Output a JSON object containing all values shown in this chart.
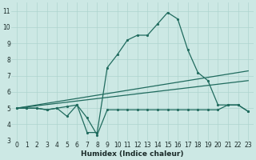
{
  "xlabel": "Humidex (Indice chaleur)",
  "x": [
    0,
    1,
    2,
    3,
    4,
    5,
    6,
    7,
    8,
    9,
    10,
    11,
    12,
    13,
    14,
    15,
    16,
    17,
    18,
    19,
    20,
    21,
    22,
    23
  ],
  "main_line": [
    5.0,
    5.0,
    5.0,
    4.9,
    5.0,
    5.1,
    5.2,
    3.5,
    3.5,
    7.5,
    8.3,
    9.2,
    9.5,
    9.5,
    10.2,
    10.9,
    10.5,
    8.6,
    7.2,
    6.7,
    5.2,
    5.2,
    5.2,
    4.8
  ],
  "low_line": [
    5.0,
    5.0,
    5.0,
    4.9,
    5.0,
    4.5,
    5.2,
    4.4,
    3.35,
    4.9,
    4.9,
    4.9,
    4.9,
    4.9,
    4.9,
    4.9,
    4.9,
    4.9,
    4.9,
    4.9,
    4.9,
    5.2,
    5.2,
    4.8
  ],
  "trend1_x": [
    0,
    23
  ],
  "trend1_y": [
    5.0,
    7.3
  ],
  "trend2_x": [
    0,
    23
  ],
  "trend2_y": [
    5.0,
    6.7
  ],
  "ylim": [
    3.0,
    11.5
  ],
  "xlim": [
    -0.5,
    23.5
  ],
  "yticks": [
    3,
    4,
    5,
    6,
    7,
    8,
    9,
    10,
    11
  ],
  "xticks": [
    0,
    1,
    2,
    3,
    4,
    5,
    6,
    7,
    8,
    9,
    10,
    11,
    12,
    13,
    14,
    15,
    16,
    17,
    18,
    19,
    20,
    21,
    22,
    23
  ],
  "line_color": "#206b5e",
  "bg_color": "#cce8e4",
  "grid_color": "#afd4cf",
  "tick_fontsize": 5.5,
  "label_fontsize": 6.5
}
